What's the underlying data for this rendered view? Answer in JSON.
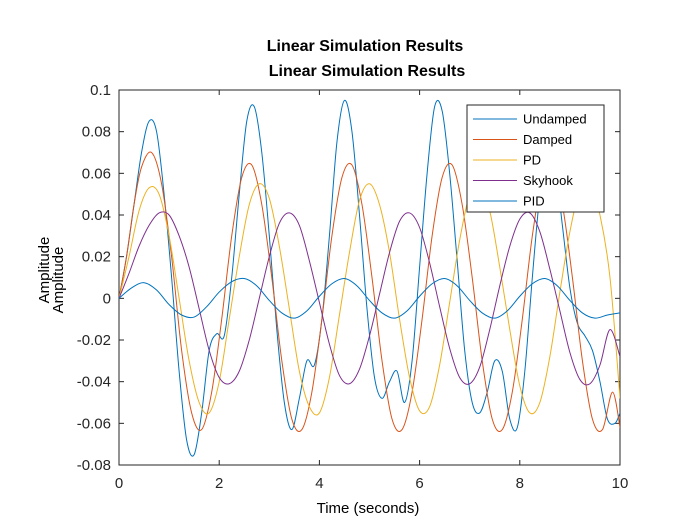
{
  "chart_data": {
    "type": "line",
    "title_lines": [
      "Linear Simulation Results",
      "Linear Simulation Results"
    ],
    "xlabel": "Time (seconds)",
    "ylabel_lines": [
      "Amplitude",
      "Amplitude"
    ],
    "xlim": [
      0,
      10
    ],
    "ylim": [
      -0.08,
      0.1
    ],
    "xticks": [
      0,
      2,
      4,
      6,
      8,
      10
    ],
    "yticks": [
      -0.08,
      -0.06,
      -0.04,
      -0.02,
      0,
      0.02,
      0.04,
      0.06,
      0.08,
      0.1
    ],
    "xtick_labels": [
      "0",
      "2",
      "4",
      "6",
      "8",
      "10"
    ],
    "ytick_labels": [
      "-0.08",
      "-0.06",
      "-0.04",
      "-0.02",
      "0",
      "0.02",
      "0.04",
      "0.06",
      "0.08",
      "0.1"
    ],
    "grid": false,
    "legend_position": "top-right",
    "series": [
      {
        "name": "Undamped",
        "color": "#0072BD",
        "x": [
          0,
          0.15,
          0.3,
          0.45,
          0.6,
          0.75,
          0.9,
          1.05,
          1.2,
          1.35,
          1.5,
          1.65,
          1.8,
          1.95,
          2.1,
          2.25,
          2.4,
          2.55,
          2.7,
          2.85,
          3.0,
          3.15,
          3.3,
          3.45,
          3.6,
          3.75,
          3.9,
          4.05,
          4.2,
          4.35,
          4.5,
          4.65,
          4.8,
          4.95,
          5.1,
          5.25,
          5.4,
          5.55,
          5.7,
          5.85,
          6.0,
          6.15,
          6.3,
          6.45,
          6.6,
          6.75,
          6.9,
          7.05,
          7.2,
          7.35,
          7.5,
          7.65,
          7.8,
          7.95,
          8.1,
          8.25,
          8.4,
          8.55,
          8.7,
          8.85,
          9.0,
          9.15,
          9.3,
          9.45,
          9.6,
          9.75,
          9.9,
          10.0
        ],
        "values": [
          0,
          0.02,
          0.045,
          0.07,
          0.085,
          0.08,
          0.05,
          0.01,
          -0.035,
          -0.068,
          -0.075,
          -0.055,
          -0.025,
          -0.017,
          -0.018,
          0.01,
          0.05,
          0.085,
          0.092,
          0.07,
          0.03,
          -0.015,
          -0.05,
          -0.063,
          -0.048,
          -0.03,
          -0.032,
          -0.01,
          0.03,
          0.075,
          0.095,
          0.08,
          0.04,
          -0.005,
          -0.038,
          -0.048,
          -0.04,
          -0.035,
          -0.05,
          -0.03,
          0.015,
          0.06,
          0.092,
          0.09,
          0.06,
          0.018,
          -0.025,
          -0.05,
          -0.055,
          -0.045,
          -0.03,
          -0.035,
          -0.058,
          -0.062,
          -0.035,
          0.01,
          0.05,
          0.075,
          0.065,
          0.035,
          0.005,
          -0.012,
          -0.018,
          -0.025,
          -0.04,
          -0.058,
          -0.06,
          -0.055
        ]
      },
      {
        "name": "Damped",
        "color": "#D95319",
        "x": [
          0,
          0.15,
          0.3,
          0.45,
          0.65,
          0.85,
          1.05,
          1.25,
          1.45,
          1.65,
          1.85,
          2.05,
          2.25,
          2.45,
          2.65,
          2.85,
          3.05,
          3.25,
          3.45,
          3.65,
          3.85,
          4.05,
          4.25,
          4.45,
          4.65,
          4.85,
          5.05,
          5.25,
          5.45,
          5.65,
          5.85,
          6.05,
          6.25,
          6.45,
          6.65,
          6.85,
          7.05,
          7.25,
          7.45,
          7.65,
          7.85,
          8.05,
          8.25,
          8.45,
          8.65,
          8.85,
          9.05,
          9.25,
          9.45,
          9.65,
          9.85,
          10.0
        ],
        "values": [
          0,
          0.02,
          0.045,
          0.063,
          0.07,
          0.055,
          0.02,
          -0.025,
          -0.055,
          -0.063,
          -0.045,
          -0.01,
          0.03,
          0.058,
          0.064,
          0.045,
          0.01,
          -0.03,
          -0.058,
          -0.063,
          -0.045,
          -0.01,
          0.03,
          0.058,
          0.064,
          0.045,
          0.01,
          -0.03,
          -0.058,
          -0.063,
          -0.045,
          -0.01,
          0.03,
          0.058,
          0.064,
          0.045,
          0.01,
          -0.03,
          -0.058,
          -0.063,
          -0.045,
          -0.01,
          0.03,
          0.058,
          0.063,
          0.045,
          0.01,
          -0.03,
          -0.058,
          -0.063,
          -0.045,
          -0.062
        ]
      },
      {
        "name": "PD",
        "color": "#EDB120",
        "x": [
          0,
          0.2,
          0.4,
          0.6,
          0.8,
          1.0,
          1.2,
          1.4,
          1.6,
          1.8,
          2.0,
          2.2,
          2.4,
          2.6,
          2.8,
          3.0,
          3.2,
          3.4,
          3.6,
          3.8,
          4.0,
          4.2,
          4.4,
          4.6,
          4.8,
          5.0,
          5.2,
          5.4,
          5.6,
          5.8,
          6.0,
          6.2,
          6.4,
          6.6,
          6.8,
          7.0,
          7.2,
          7.4,
          7.6,
          7.8,
          8.0,
          8.2,
          8.4,
          8.6,
          8.8,
          9.0,
          9.2,
          9.4,
          9.6,
          9.8,
          10.0
        ],
        "values": [
          0,
          0.02,
          0.042,
          0.053,
          0.05,
          0.03,
          0.0,
          -0.03,
          -0.05,
          -0.055,
          -0.04,
          -0.01,
          0.02,
          0.045,
          0.055,
          0.048,
          0.025,
          -0.005,
          -0.035,
          -0.052,
          -0.055,
          -0.038,
          -0.008,
          0.022,
          0.047,
          0.055,
          0.045,
          0.022,
          -0.01,
          -0.038,
          -0.054,
          -0.052,
          -0.032,
          -0.002,
          0.028,
          0.05,
          0.055,
          0.042,
          0.015,
          -0.015,
          -0.042,
          -0.055,
          -0.05,
          -0.028,
          0.003,
          0.032,
          0.052,
          0.055,
          0.04,
          0.01,
          -0.048
        ]
      },
      {
        "name": "Skyhook",
        "color": "#7E2F8E",
        "x": [
          0,
          0.2,
          0.4,
          0.6,
          0.8,
          1.0,
          1.2,
          1.4,
          1.6,
          1.8,
          2.0,
          2.2,
          2.4,
          2.6,
          2.8,
          3.0,
          3.2,
          3.4,
          3.6,
          3.8,
          4.0,
          4.2,
          4.4,
          4.6,
          4.8,
          5.0,
          5.2,
          5.4,
          5.6,
          5.8,
          6.0,
          6.2,
          6.4,
          6.6,
          6.8,
          7.0,
          7.2,
          7.4,
          7.6,
          7.8,
          8.0,
          8.2,
          8.4,
          8.6,
          8.8,
          9.0,
          9.2,
          9.4,
          9.6,
          9.8,
          10.0
        ],
        "values": [
          0,
          0.012,
          0.025,
          0.035,
          0.041,
          0.04,
          0.03,
          0.015,
          -0.005,
          -0.025,
          -0.038,
          -0.041,
          -0.035,
          -0.02,
          0.0,
          0.02,
          0.036,
          0.041,
          0.035,
          0.018,
          -0.002,
          -0.022,
          -0.037,
          -0.041,
          -0.034,
          -0.018,
          0.002,
          0.022,
          0.037,
          0.041,
          0.034,
          0.017,
          -0.004,
          -0.024,
          -0.038,
          -0.041,
          -0.033,
          -0.015,
          0.006,
          0.025,
          0.038,
          0.041,
          0.032,
          0.014,
          -0.006,
          -0.026,
          -0.039,
          -0.041,
          -0.032,
          -0.015,
          -0.028
        ]
      },
      {
        "name": "PID",
        "color": "#0072BD",
        "x": [
          0,
          0.25,
          0.5,
          0.75,
          1.0,
          1.25,
          1.5,
          1.75,
          2.0,
          2.25,
          2.5,
          2.75,
          3.0,
          3.25,
          3.5,
          3.75,
          4.0,
          4.25,
          4.5,
          4.75,
          5.0,
          5.25,
          5.5,
          5.75,
          6.0,
          6.25,
          6.5,
          6.75,
          7.0,
          7.25,
          7.5,
          7.75,
          8.0,
          8.25,
          8.5,
          8.75,
          9.0,
          9.25,
          9.5,
          9.75,
          10.0
        ],
        "values": [
          0,
          0.005,
          0.0075,
          0.004,
          -0.003,
          -0.008,
          -0.009,
          -0.004,
          0.003,
          0.008,
          0.0095,
          0.006,
          -0.001,
          -0.007,
          -0.0095,
          -0.006,
          0.001,
          0.007,
          0.0095,
          0.006,
          -0.001,
          -0.007,
          -0.0095,
          -0.006,
          0.001,
          0.007,
          0.0095,
          0.006,
          -0.001,
          -0.007,
          -0.0095,
          -0.006,
          0.001,
          0.007,
          0.0095,
          0.006,
          -0.001,
          -0.007,
          -0.0095,
          -0.008,
          -0.007
        ]
      }
    ]
  }
}
